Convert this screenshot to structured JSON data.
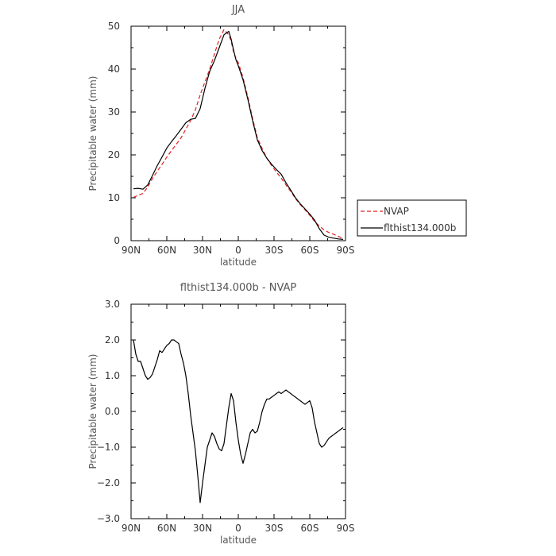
{
  "chart_data": [
    {
      "type": "line",
      "title": "JJA",
      "xlabel": "latitude",
      "ylabel": "Precipitable water (mm)",
      "xlim": [
        90,
        -90
      ],
      "ylim": [
        0,
        50
      ],
      "xticks": [
        {
          "v": 90,
          "label": "90N"
        },
        {
          "v": 60,
          "label": "60N"
        },
        {
          "v": 30,
          "label": "30N"
        },
        {
          "v": 0,
          "label": "0"
        },
        {
          "v": -30,
          "label": "30S"
        },
        {
          "v": -60,
          "label": "60S"
        },
        {
          "v": -90,
          "label": "90S"
        }
      ],
      "yticks": [
        {
          "v": 0,
          "label": "0"
        },
        {
          "v": 10,
          "label": "10"
        },
        {
          "v": 20,
          "label": "20"
        },
        {
          "v": 30,
          "label": "30"
        },
        {
          "v": 40,
          "label": "40"
        },
        {
          "v": 50,
          "label": "50"
        }
      ],
      "legend": "right",
      "series": [
        {
          "name": "NVAP",
          "color": "#e02020",
          "dash": true,
          "x": [
            88,
            84,
            80,
            76,
            72,
            68,
            64,
            60,
            56,
            52,
            48,
            44,
            40,
            36,
            32,
            28,
            24,
            20,
            16,
            12,
            8,
            6,
            4,
            2,
            0,
            -4,
            -8,
            -12,
            -16,
            -20,
            -24,
            -28,
            -32,
            -36,
            -40,
            -44,
            -48,
            -52,
            -56,
            -60,
            -64,
            -68,
            -72,
            -76,
            -80,
            -84,
            -88
          ],
          "y": [
            10.1,
            10.6,
            11.0,
            12.5,
            14.5,
            16.2,
            17.8,
            19.5,
            21.0,
            22.5,
            24.0,
            26.0,
            28.0,
            30.5,
            34.0,
            37.0,
            40.0,
            43.5,
            47.0,
            49.2,
            48.0,
            46.5,
            44.0,
            42.5,
            41.5,
            38.0,
            33.5,
            28.5,
            24.0,
            21.5,
            19.2,
            17.5,
            16.0,
            14.6,
            13.0,
            11.5,
            9.8,
            8.4,
            7.2,
            5.9,
            4.5,
            3.4,
            2.5,
            1.9,
            1.5,
            1.0,
            0.5
          ]
        },
        {
          "name": "flthist134.000b",
          "color": "#000000",
          "dash": false,
          "x": [
            88,
            84,
            80,
            76,
            72,
            68,
            64,
            60,
            56,
            52,
            48,
            44,
            40,
            36,
            32,
            28,
            24,
            20,
            16,
            12,
            8,
            6,
            4,
            2,
            0,
            -4,
            -8,
            -12,
            -16,
            -20,
            -24,
            -28,
            -32,
            -36,
            -40,
            -44,
            -48,
            -52,
            -56,
            -60,
            -64,
            -68,
            -72,
            -76,
            -80,
            -84,
            -88
          ],
          "y": [
            12.1,
            12.2,
            12.0,
            13.0,
            15.2,
            17.5,
            19.5,
            21.6,
            23.1,
            24.5,
            26.0,
            27.5,
            28.3,
            28.5,
            30.8,
            35.5,
            39.5,
            42.0,
            45.0,
            48.0,
            48.8,
            47.0,
            44.5,
            42.2,
            40.8,
            37.5,
            33.0,
            28.0,
            23.5,
            21.0,
            19.2,
            17.8,
            16.6,
            15.5,
            13.5,
            11.8,
            10.0,
            8.6,
            7.4,
            6.2,
            4.8,
            2.8,
            1.3,
            0.8,
            0.6,
            0.4,
            0.3
          ]
        }
      ]
    },
    {
      "type": "line",
      "title": "flthist134.000b - NVAP",
      "xlabel": "latitude",
      "ylabel": "Precipitable water (mm)",
      "xlim": [
        90,
        -90
      ],
      "ylim": [
        -3,
        3
      ],
      "xticks": [
        {
          "v": 90,
          "label": "90N"
        },
        {
          "v": 60,
          "label": "60N"
        },
        {
          "v": 30,
          "label": "30N"
        },
        {
          "v": 0,
          "label": "0"
        },
        {
          "v": -30,
          "label": "30S"
        },
        {
          "v": -60,
          "label": "60S"
        },
        {
          "v": -90,
          "label": "90S"
        }
      ],
      "yticks": [
        {
          "v": -3,
          "label": "−3.0"
        },
        {
          "v": -2,
          "label": "−2.0"
        },
        {
          "v": -1,
          "label": "−1.0"
        },
        {
          "v": 0,
          "label": "0.0"
        },
        {
          "v": 1,
          "label": "1.0"
        },
        {
          "v": 2,
          "label": "2.0"
        },
        {
          "v": 3,
          "label": "3.0"
        }
      ],
      "series": [
        {
          "color": "#000000",
          "dash": false,
          "x": [
            88,
            86,
            84,
            82,
            80,
            78,
            76,
            74,
            72,
            70,
            68,
            66,
            64,
            62,
            60,
            58,
            56,
            54,
            52,
            50,
            48,
            46,
            44,
            42,
            40,
            38,
            36,
            34,
            32,
            30,
            28,
            26,
            24,
            22,
            20,
            18,
            16,
            14,
            12,
            10,
            8,
            6,
            4,
            2,
            0,
            -2,
            -4,
            -6,
            -8,
            -10,
            -12,
            -14,
            -16,
            -18,
            -20,
            -22,
            -24,
            -26,
            -28,
            -30,
            -32,
            -34,
            -36,
            -38,
            -40,
            -42,
            -44,
            -46,
            -48,
            -50,
            -52,
            -54,
            -56,
            -58,
            -60,
            -62,
            -64,
            -66,
            -68,
            -70,
            -72,
            -74,
            -76,
            -78,
            -80,
            -82,
            -84,
            -86,
            -88
          ],
          "y": [
            2.0,
            1.6,
            1.4,
            1.4,
            1.2,
            1.0,
            0.9,
            0.95,
            1.05,
            1.25,
            1.45,
            1.7,
            1.65,
            1.75,
            1.85,
            1.9,
            2.0,
            2.0,
            1.95,
            1.9,
            1.6,
            1.35,
            1.0,
            0.5,
            -0.1,
            -0.6,
            -1.1,
            -1.8,
            -2.55,
            -2.0,
            -1.5,
            -1.0,
            -0.8,
            -0.6,
            -0.7,
            -0.9,
            -1.05,
            -1.1,
            -0.9,
            -0.4,
            0.1,
            0.5,
            0.3,
            -0.3,
            -0.8,
            -1.2,
            -1.45,
            -1.2,
            -0.9,
            -0.6,
            -0.5,
            -0.6,
            -0.55,
            -0.3,
            0.0,
            0.2,
            0.35,
            0.35,
            0.4,
            0.45,
            0.5,
            0.55,
            0.5,
            0.55,
            0.6,
            0.55,
            0.5,
            0.45,
            0.4,
            0.35,
            0.3,
            0.25,
            0.2,
            0.25,
            0.3,
            0.1,
            -0.3,
            -0.6,
            -0.9,
            -1.0,
            -0.95,
            -0.85,
            -0.75,
            -0.7,
            -0.65,
            -0.6,
            -0.55,
            -0.5,
            -0.45
          ]
        }
      ]
    }
  ]
}
